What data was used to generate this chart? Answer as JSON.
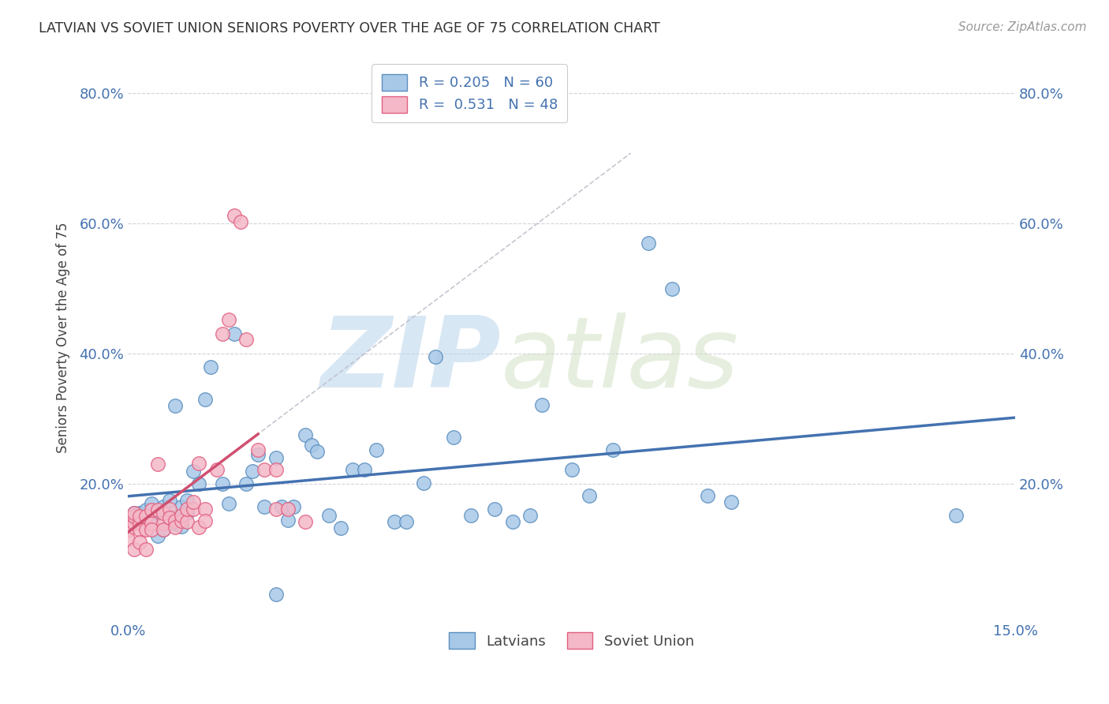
{
  "title": "LATVIAN VS SOVIET UNION SENIORS POVERTY OVER THE AGE OF 75 CORRELATION CHART",
  "source": "Source: ZipAtlas.com",
  "ylabel": "Seniors Poverty Over the Age of 75",
  "xlim": [
    0.0,
    0.15
  ],
  "ylim": [
    -0.01,
    0.86
  ],
  "ytick_vals": [
    0.2,
    0.4,
    0.6,
    0.8
  ],
  "legend_latvians": "Latvians",
  "legend_soviet": "Soviet Union",
  "R_latvian": 0.205,
  "N_latvian": 60,
  "R_soviet": 0.531,
  "N_soviet": 48,
  "color_latvian": "#A8C8E8",
  "color_soviet": "#F4B8C8",
  "color_latvian_edge": "#5B8FBF",
  "color_soviet_edge": "#E06080",
  "color_latvian_line": "#4472B0",
  "color_soviet_line": "#D05070",
  "color_soviet_ext": "#C0C0CC",
  "watermark_zip": "ZIP",
  "watermark_atlas": "atlas",
  "background_color": "#ffffff",
  "latvian_x": [
    0.001,
    0.002,
    0.003,
    0.003,
    0.004,
    0.004,
    0.005,
    0.005,
    0.006,
    0.006,
    0.007,
    0.007,
    0.008,
    0.008,
    0.009,
    0.009,
    0.01,
    0.01,
    0.011,
    0.012,
    0.013,
    0.014,
    0.016,
    0.017,
    0.018,
    0.02,
    0.021,
    0.022,
    0.023,
    0.025,
    0.026,
    0.027,
    0.028,
    0.03,
    0.031,
    0.032,
    0.034,
    0.036,
    0.038,
    0.04,
    0.042,
    0.045,
    0.047,
    0.05,
    0.052,
    0.055,
    0.058,
    0.062,
    0.065,
    0.068,
    0.07,
    0.075,
    0.078,
    0.082,
    0.088,
    0.092,
    0.098,
    0.102,
    0.14,
    0.025
  ],
  "latvian_y": [
    0.155,
    0.155,
    0.16,
    0.145,
    0.15,
    0.17,
    0.155,
    0.12,
    0.13,
    0.165,
    0.15,
    0.175,
    0.32,
    0.14,
    0.135,
    0.165,
    0.175,
    0.155,
    0.22,
    0.2,
    0.33,
    0.38,
    0.2,
    0.17,
    0.43,
    0.2,
    0.22,
    0.245,
    0.165,
    0.24,
    0.165,
    0.145,
    0.165,
    0.275,
    0.26,
    0.25,
    0.152,
    0.132,
    0.222,
    0.222,
    0.252,
    0.142,
    0.142,
    0.202,
    0.395,
    0.272,
    0.152,
    0.162,
    0.142,
    0.152,
    0.322,
    0.222,
    0.182,
    0.252,
    0.57,
    0.5,
    0.182,
    0.172,
    0.152,
    0.03
  ],
  "soviet_x": [
    0.0,
    0.0,
    0.0,
    0.001,
    0.001,
    0.001,
    0.001,
    0.002,
    0.002,
    0.002,
    0.002,
    0.003,
    0.003,
    0.003,
    0.004,
    0.004,
    0.004,
    0.005,
    0.005,
    0.006,
    0.006,
    0.006,
    0.007,
    0.007,
    0.008,
    0.008,
    0.009,
    0.009,
    0.01,
    0.01,
    0.011,
    0.011,
    0.012,
    0.012,
    0.013,
    0.013,
    0.015,
    0.016,
    0.017,
    0.018,
    0.019,
    0.02,
    0.022,
    0.023,
    0.025,
    0.025,
    0.027,
    0.03
  ],
  "soviet_y": [
    0.145,
    0.13,
    0.115,
    0.14,
    0.15,
    0.155,
    0.1,
    0.14,
    0.13,
    0.15,
    0.11,
    0.13,
    0.15,
    0.1,
    0.14,
    0.16,
    0.13,
    0.16,
    0.23,
    0.14,
    0.13,
    0.155,
    0.162,
    0.148,
    0.143,
    0.133,
    0.143,
    0.152,
    0.142,
    0.162,
    0.162,
    0.172,
    0.232,
    0.133,
    0.162,
    0.143,
    0.222,
    0.43,
    0.452,
    0.612,
    0.602,
    0.422,
    0.252,
    0.222,
    0.222,
    0.162,
    0.162,
    0.142
  ]
}
